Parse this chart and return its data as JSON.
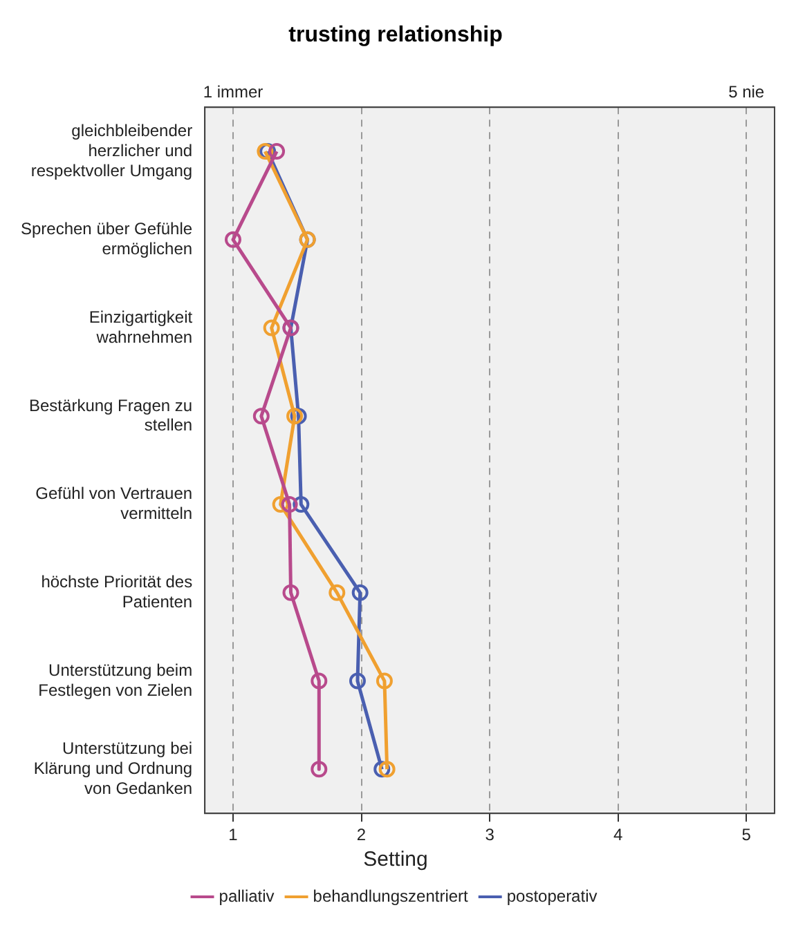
{
  "chart_data": {
    "type": "line",
    "title": "trusting relationship",
    "orientation": "horizontal",
    "categories": [
      "gleichbleibender herzlicher und respektvoller Umgang",
      "Sprechen über Gefühle ermöglichen",
      "Einzigartigkeit wahrnehmen",
      "Bestärkung Fragen zu stellen",
      "Gefühl von Vertrauen vermitteln",
      "höchste Priorität des Patienten",
      "Unterstützung beim Festlegen von Zielen",
      "Unterstützung bei Klärung und Ordnung von Gedanken"
    ],
    "series": [
      {
        "name": "postoperativ",
        "color": "#4a5fb0",
        "values": [
          1.27,
          1.58,
          1.45,
          1.51,
          1.53,
          1.99,
          1.97,
          2.16
        ]
      },
      {
        "name": "behandlungszentriert",
        "color": "#f0a030",
        "values": [
          1.25,
          1.58,
          1.3,
          1.48,
          1.37,
          1.81,
          2.18,
          2.2
        ]
      },
      {
        "name": "palliativ",
        "color": "#b84a8c",
        "values": [
          1.34,
          1.0,
          1.45,
          1.22,
          1.44,
          1.45,
          1.67,
          1.67
        ]
      }
    ],
    "xlim": [
      0.78,
      5.22
    ],
    "xticks": [
      1,
      2,
      3,
      4,
      5
    ],
    "x2lim": [
      0.78,
      5.22
    ],
    "x2ticks": [
      {
        "value": 1,
        "label": "1 immer"
      },
      {
        "value": 5,
        "label": "5 nie"
      }
    ],
    "grid": "x",
    "legend": "bottom",
    "legend_title": "Setting",
    "marker": "circle",
    "line_style": "solid"
  }
}
